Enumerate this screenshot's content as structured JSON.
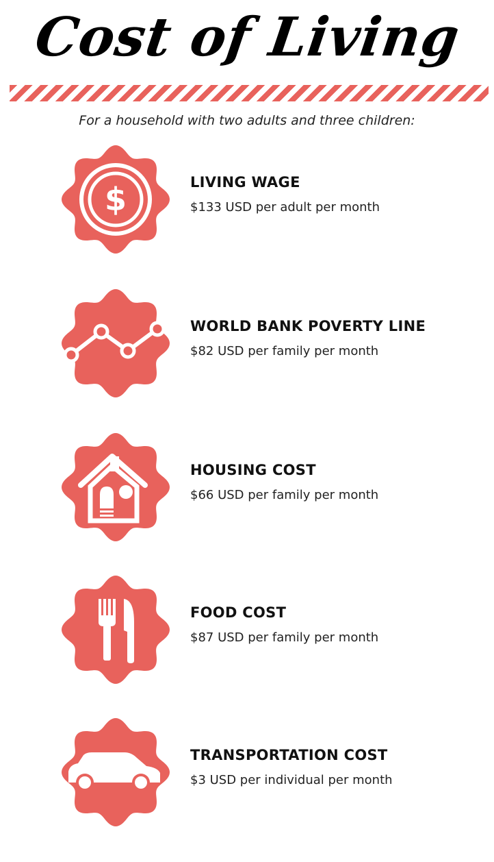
{
  "title": "Cost of Living",
  "subtitle": "For a household with two adults and three children:",
  "colors": {
    "accent": "#e8625c",
    "text": "#111111",
    "background": "#ffffff"
  },
  "items": [
    {
      "icon": "dollar-coin-icon",
      "heading": "LIVING WAGE",
      "detail": "$133 USD per adult per month"
    },
    {
      "icon": "line-graph-icon",
      "heading": "WORLD BANK POVERTY LINE",
      "detail": "$82 USD per family per month"
    },
    {
      "icon": "house-icon",
      "heading": "HOUSING COST",
      "detail": "$66 USD per family per month"
    },
    {
      "icon": "fork-knife-icon",
      "heading": "FOOD COST",
      "detail": "$87 USD per family per month"
    },
    {
      "icon": "car-icon",
      "heading": "TRANSPORTATION COST",
      "detail": "$3 USD per individual per month"
    }
  ]
}
